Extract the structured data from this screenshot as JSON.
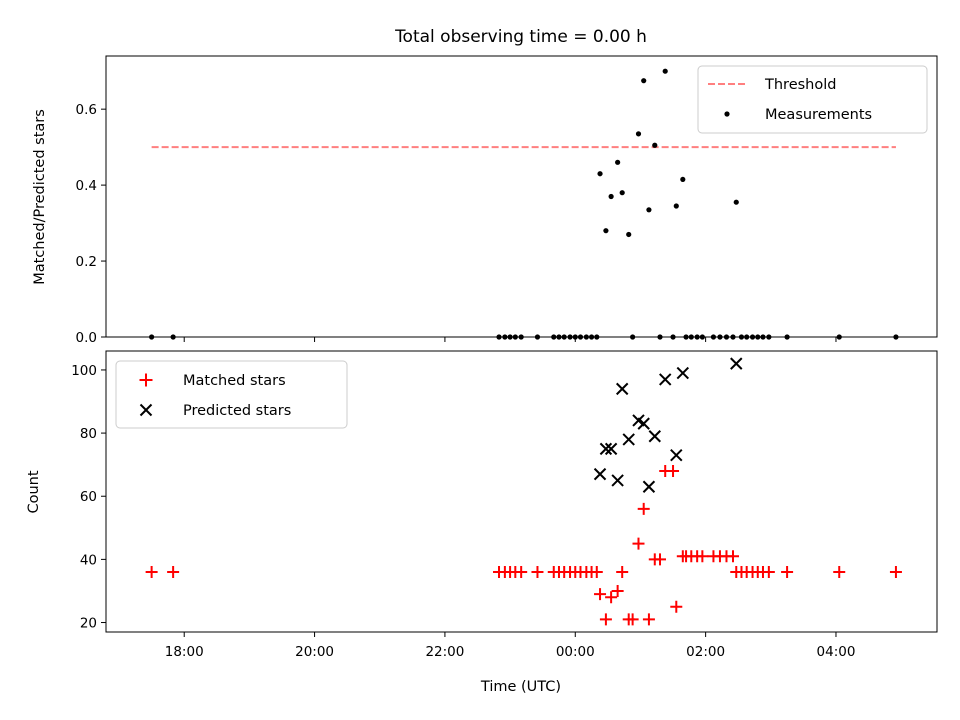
{
  "chart_data": [
    {
      "type": "scatter",
      "title": "Total observing time = 0.00 h",
      "xlabel": "",
      "ylabel": "Matched/Predicted stars",
      "xlim": [
        -7.2,
        5.55
      ],
      "ylim": [
        0,
        0.74
      ],
      "yticks": [
        0.0,
        0.2,
        0.4,
        0.6
      ],
      "ytick_labels": [
        "0.0",
        "0.2",
        "0.4",
        "0.6"
      ],
      "legend_position": "upper right",
      "threshold": {
        "name": "Threshold",
        "value": 0.5,
        "x_range": [
          -6.5,
          4.92
        ],
        "color": "#ff7f7f",
        "style": "dashed"
      },
      "series": [
        {
          "name": "Measurements",
          "color": "#000000",
          "points": [
            [
              -6.5,
              0
            ],
            [
              -6.17,
              0
            ],
            [
              -1.17,
              0
            ],
            [
              -1.08,
              0
            ],
            [
              -1.0,
              0
            ],
            [
              -0.92,
              0
            ],
            [
              -0.83,
              0
            ],
            [
              -0.58,
              0
            ],
            [
              -0.33,
              0
            ],
            [
              -0.25,
              0
            ],
            [
              -0.17,
              0
            ],
            [
              -0.08,
              0
            ],
            [
              0,
              0
            ],
            [
              0.08,
              0
            ],
            [
              0.17,
              0
            ],
            [
              0.25,
              0
            ],
            [
              0.33,
              0
            ],
            [
              0.38,
              0.43
            ],
            [
              0.47,
              0.28
            ],
            [
              0.55,
              0.37
            ],
            [
              0.65,
              0.46
            ],
            [
              0.72,
              0.38
            ],
            [
              0.82,
              0.27
            ],
            [
              0.88,
              0
            ],
            [
              0.97,
              0.535
            ],
            [
              1.05,
              0.675
            ],
            [
              1.13,
              0.335
            ],
            [
              1.22,
              0.505
            ],
            [
              1.3,
              0
            ],
            [
              1.38,
              0.7
            ],
            [
              1.5,
              0
            ],
            [
              1.55,
              0.345
            ],
            [
              1.65,
              0.415
            ],
            [
              1.7,
              0
            ],
            [
              1.78,
              0
            ],
            [
              1.87,
              0
            ],
            [
              1.95,
              0
            ],
            [
              2.12,
              0
            ],
            [
              2.22,
              0
            ],
            [
              2.32,
              0
            ],
            [
              2.42,
              0
            ],
            [
              2.47,
              0.355
            ],
            [
              2.55,
              0
            ],
            [
              2.63,
              0
            ],
            [
              2.72,
              0
            ],
            [
              2.8,
              0
            ],
            [
              2.88,
              0
            ],
            [
              2.97,
              0
            ],
            [
              3.25,
              0
            ],
            [
              4.05,
              0
            ],
            [
              4.92,
              0
            ]
          ]
        }
      ]
    },
    {
      "type": "scatter",
      "title": "",
      "xlabel": "Time (UTC)",
      "ylabel": "Count",
      "xlim": [
        -7.2,
        5.55
      ],
      "ylim": [
        17,
        106
      ],
      "xticks": [
        -6,
        -4,
        -2,
        0,
        2,
        4
      ],
      "xtick_labels": [
        "18:00",
        "20:00",
        "22:00",
        "00:00",
        "02:00",
        "04:00"
      ],
      "yticks": [
        20,
        40,
        60,
        80,
        100
      ],
      "ytick_labels": [
        "20",
        "40",
        "60",
        "80",
        "100"
      ],
      "legend_position": "upper left",
      "series": [
        {
          "name": "Matched stars",
          "marker": "plus",
          "color": "#ff0000",
          "points": [
            [
              -6.5,
              36
            ],
            [
              -6.17,
              36
            ],
            [
              -1.17,
              36
            ],
            [
              -1.08,
              36
            ],
            [
              -1.0,
              36
            ],
            [
              -0.92,
              36
            ],
            [
              -0.83,
              36
            ],
            [
              -0.58,
              36
            ],
            [
              -0.33,
              36
            ],
            [
              -0.25,
              36
            ],
            [
              -0.17,
              36
            ],
            [
              -0.08,
              36
            ],
            [
              0,
              36
            ],
            [
              0.08,
              36
            ],
            [
              0.17,
              36
            ],
            [
              0.25,
              36
            ],
            [
              0.33,
              36
            ],
            [
              0.38,
              29
            ],
            [
              0.47,
              21
            ],
            [
              0.55,
              28
            ],
            [
              0.65,
              30
            ],
            [
              0.72,
              36
            ],
            [
              0.82,
              21
            ],
            [
              0.88,
              21
            ],
            [
              0.97,
              45
            ],
            [
              1.05,
              56
            ],
            [
              1.13,
              21
            ],
            [
              1.22,
              40
            ],
            [
              1.3,
              40
            ],
            [
              1.38,
              68
            ],
            [
              1.5,
              68
            ],
            [
              1.55,
              25
            ],
            [
              1.65,
              41
            ],
            [
              1.7,
              41
            ],
            [
              1.78,
              41
            ],
            [
              1.87,
              41
            ],
            [
              1.95,
              41
            ],
            [
              2.12,
              41
            ],
            [
              2.22,
              41
            ],
            [
              2.32,
              41
            ],
            [
              2.42,
              41
            ],
            [
              2.47,
              36
            ],
            [
              2.55,
              36
            ],
            [
              2.63,
              36
            ],
            [
              2.72,
              36
            ],
            [
              2.8,
              36
            ],
            [
              2.88,
              36
            ],
            [
              2.97,
              36
            ],
            [
              3.25,
              36
            ],
            [
              4.05,
              36
            ],
            [
              4.92,
              36
            ]
          ]
        },
        {
          "name": "Predicted stars",
          "marker": "x",
          "color": "#000000",
          "points": [
            [
              0.38,
              67
            ],
            [
              0.47,
              75
            ],
            [
              0.55,
              75
            ],
            [
              0.65,
              65
            ],
            [
              0.72,
              94
            ],
            [
              0.82,
              78
            ],
            [
              0.97,
              84
            ],
            [
              1.05,
              83
            ],
            [
              1.13,
              63
            ],
            [
              1.22,
              79
            ],
            [
              1.38,
              97
            ],
            [
              1.55,
              73
            ],
            [
              1.65,
              99
            ],
            [
              2.47,
              102
            ]
          ]
        }
      ]
    }
  ]
}
